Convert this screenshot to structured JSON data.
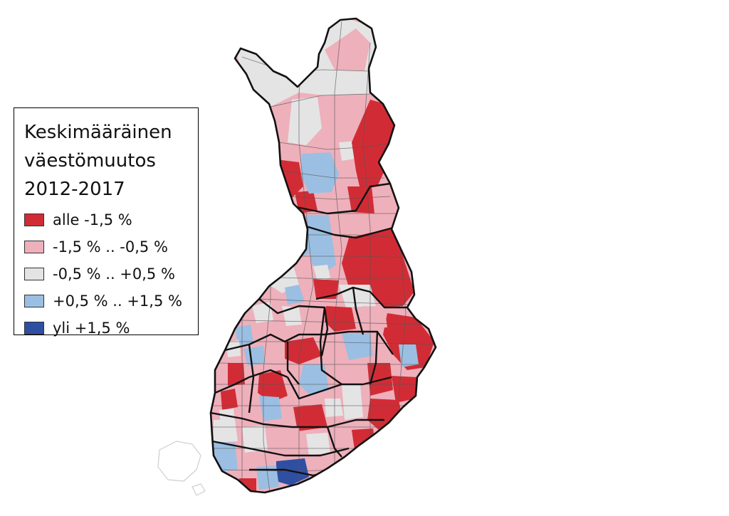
{
  "legend": {
    "title_lines": [
      "Keskimääräinen",
      "väestömuutos",
      "2012-2017"
    ],
    "items": [
      {
        "label": "alle -1,5 %",
        "color": "#d12c35"
      },
      {
        "label": "-1,5 % .. -0,5 %",
        "color": "#eeb0bb"
      },
      {
        "label": "-0,5 % .. +0,5 %",
        "color": "#e4e4e4"
      },
      {
        "label": "+0,5 % .. +1,5 %",
        "color": "#9bbfe2"
      },
      {
        "label": "yli +1,5 %",
        "color": "#2f4fa3"
      }
    ]
  },
  "map": {
    "country": "Finland",
    "colors": {
      "border": "#111111",
      "municipality_line": "#555555"
    }
  }
}
